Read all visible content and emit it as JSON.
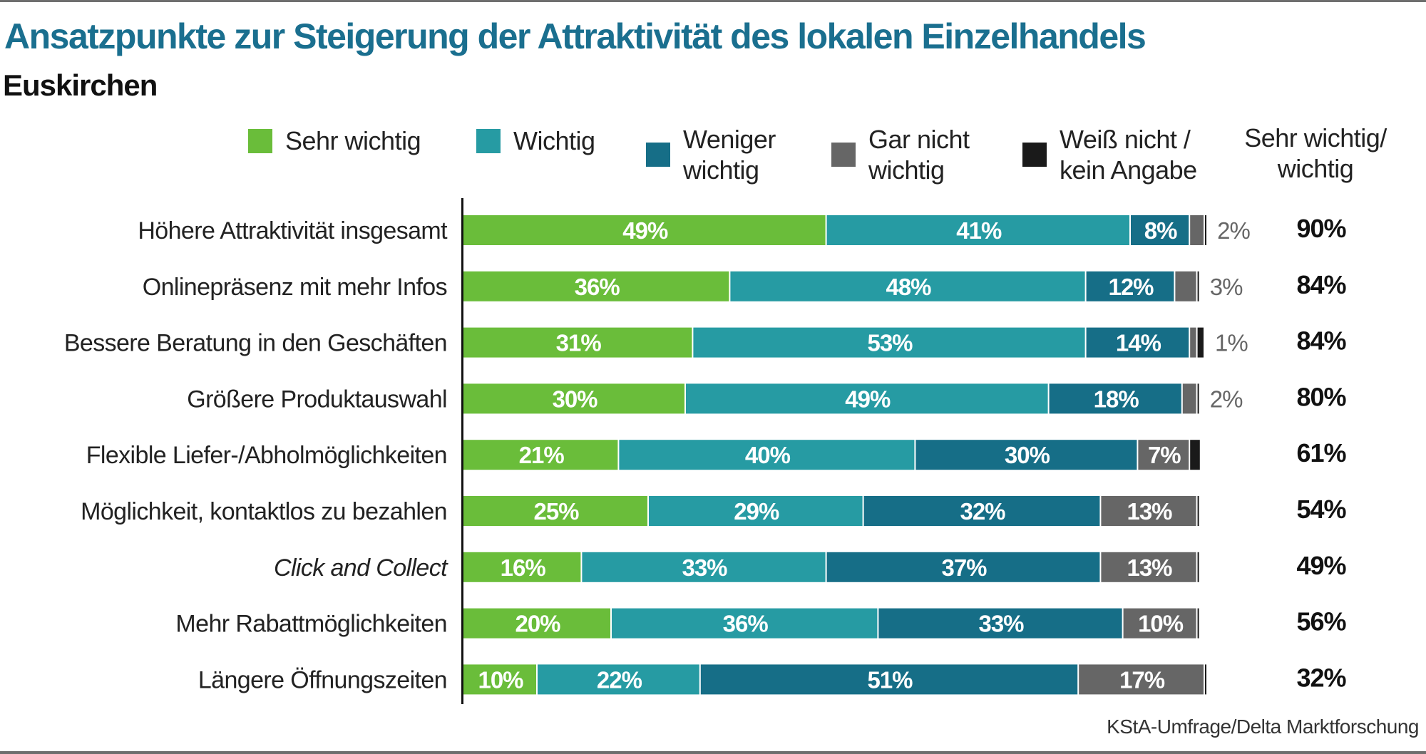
{
  "header": {
    "title": "Ansatzpunkte zur Steigerung der Attraktivität des lokalen Einzelhandels",
    "subtitle": "Euskirchen"
  },
  "legend": [
    {
      "label_line1": "Sehr wichtig",
      "label_line2": "",
      "color": "#6abd3a"
    },
    {
      "label_line1": "Wichtig",
      "label_line2": "",
      "color": "#269ba3"
    },
    {
      "label_line1": "Weniger",
      "label_line2": "wichtig",
      "color": "#166e87"
    },
    {
      "label_line1": "Gar nicht",
      "label_line2": "wichtig",
      "color": "#666666"
    },
    {
      "label_line1": "Weiß nicht /",
      "label_line2": "kein Angabe",
      "color": "#1a1a1a"
    }
  ],
  "sum_header": {
    "line1": "Sehr wichtig/",
    "line2": "wichtig"
  },
  "source": "KStA-Umfrage/Delta Marktforschung",
  "chart_data": {
    "type": "bar",
    "orientation": "horizontal",
    "stacked": true,
    "title": "Ansatzpunkte zur Steigerung der Attraktivität des lokalen Einzelhandels",
    "subtitle": "Euskirchen",
    "xlabel": "",
    "ylabel": "",
    "xlim": [
      0,
      100
    ],
    "unit": "%",
    "grid": false,
    "legend_position": "top",
    "categories": [
      "Höhere Attraktivität insgesamt",
      "Onlinepräsenz mit mehr Infos",
      "Bessere Beratung in den Geschäften",
      "Größere Produktauswahl",
      "Flexible Liefer-/Abholmöglichkeiten",
      "Möglichkeit, kontaktlos zu bezahlen",
      "Click and Collect",
      "Mehr Rabattmöglichkeiten",
      "Längere Öffnungszeiten"
    ],
    "italic_categories": [
      "Click and Collect"
    ],
    "series": [
      {
        "name": "Sehr wichtig",
        "color": "#6abd3a",
        "values": [
          49,
          36,
          31,
          30,
          21,
          25,
          16,
          20,
          10
        ]
      },
      {
        "name": "Wichtig",
        "color": "#269ba3",
        "values": [
          41,
          48,
          53,
          49,
          40,
          29,
          33,
          36,
          22
        ]
      },
      {
        "name": "Weniger wichtig",
        "color": "#166e87",
        "values": [
          8,
          12,
          14,
          18,
          30,
          32,
          37,
          33,
          51
        ]
      },
      {
        "name": "Gar nicht wichtig",
        "color": "#666666",
        "values": [
          2,
          3,
          1,
          2,
          7,
          13,
          13,
          10,
          17
        ]
      },
      {
        "name": "Weiß nicht / kein Angabe",
        "color": "#1a1a1a",
        "values": [
          0.3,
          0.3,
          1,
          0.3,
          1.5,
          0.3,
          0.3,
          0.3,
          0.3
        ]
      }
    ],
    "outside_labels": [
      "2%",
      "3%",
      "1%",
      "2%",
      "",
      "",
      "",
      "",
      ""
    ],
    "segment_labels_shown": [
      [
        true,
        true,
        true,
        false,
        false
      ],
      [
        true,
        true,
        true,
        false,
        false
      ],
      [
        true,
        true,
        true,
        false,
        false
      ],
      [
        true,
        true,
        true,
        false,
        false
      ],
      [
        true,
        true,
        true,
        true,
        false
      ],
      [
        true,
        true,
        true,
        true,
        false
      ],
      [
        true,
        true,
        true,
        true,
        false
      ],
      [
        true,
        true,
        true,
        true,
        false
      ],
      [
        true,
        true,
        true,
        true,
        false
      ]
    ],
    "totals_label": "Sehr wichtig/ wichtig",
    "totals": [
      90,
      84,
      84,
      80,
      61,
      54,
      49,
      56,
      32
    ]
  }
}
